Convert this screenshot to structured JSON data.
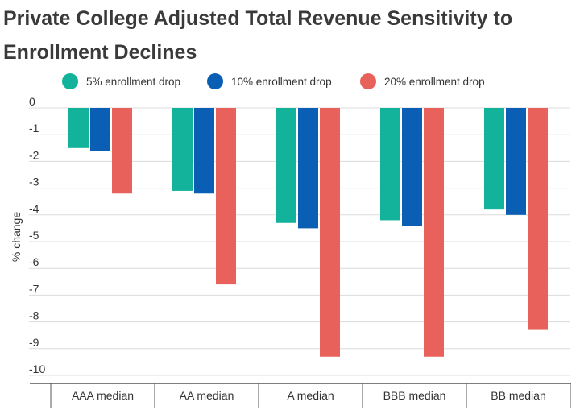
{
  "title": "Private College Adjusted Total Revenue Sensitivity to Enrollment Declines",
  "chart_data": {
    "type": "bar",
    "title": "Private College Adjusted Total Revenue Sensitivity to Enrollment Declines",
    "xlabel": "",
    "ylabel": "% change",
    "ylim": [
      -10,
      0
    ],
    "yticks": [
      0,
      -1,
      -2,
      -3,
      -4,
      -5,
      -6,
      -7,
      -8,
      -9,
      -10
    ],
    "grid": true,
    "legend_position": "top",
    "categories": [
      "AAA median",
      "AA median",
      "A median",
      "BBB median",
      "BB median"
    ],
    "series": [
      {
        "name": "5% enrollment drop",
        "color": "#12b39a",
        "values": [
          -1.5,
          -3.1,
          -4.3,
          -4.2,
          -3.8
        ]
      },
      {
        "name": "10% enrollment drop",
        "color": "#0a5fb4",
        "values": [
          -1.6,
          -3.2,
          -4.5,
          -4.4,
          -4.0
        ]
      },
      {
        "name": "20% enrollment drop",
        "color": "#e8615a",
        "values": [
          -3.2,
          -6.6,
          -9.3,
          -9.3,
          -8.3
        ]
      }
    ]
  }
}
